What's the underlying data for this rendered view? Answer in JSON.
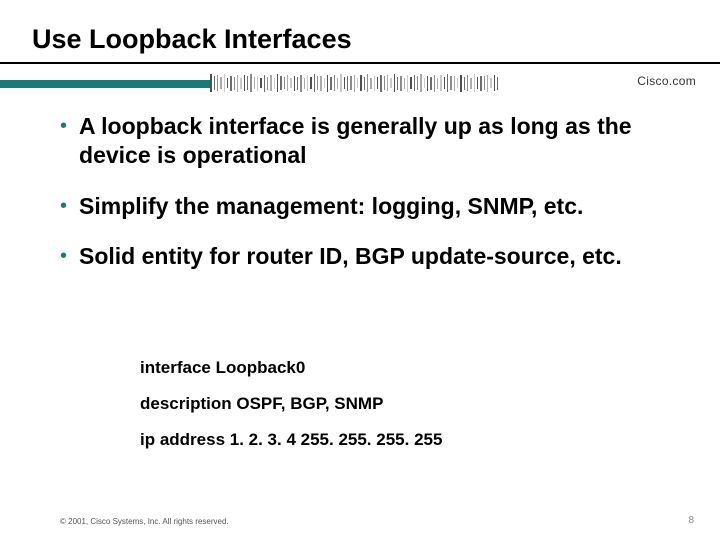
{
  "slide": {
    "title": "Use Loopback Interfaces",
    "logo_text": "Cisco.com",
    "page_number": "8",
    "copyright": "© 2001, Cisco Systems, Inc. All rights reserved."
  },
  "bullets": [
    "A loopback interface is generally up as long as the device is operational",
    "Simplify the management: logging, SNMP, etc.",
    "Solid entity for router ID, BGP update-source, etc."
  ],
  "code_lines": [
    "interface Loopback0",
    "description OSPF, BGP, SNMP",
    "ip address 1. 2. 3. 4 255. 255. 255. 255"
  ],
  "styling": {
    "title_fontsize": 27,
    "title_color": "#000000",
    "bullet_color": "#1a7a7a",
    "bullet_fontsize": 23,
    "bullet_text_color": "#000000",
    "code_fontsize": 17,
    "footer_fontsize": 8,
    "footer_color": "#555555",
    "teal_bar_color": "#1a7a7a",
    "background_color": "#ffffff",
    "page_number_color": "#888888",
    "barcode_heights": [
      18,
      14,
      16,
      12,
      18,
      10,
      15,
      13,
      17,
      11,
      16,
      14,
      18,
      12,
      15,
      10,
      17,
      13,
      16,
      11,
      18,
      14,
      12,
      16,
      10,
      15,
      13,
      17,
      11,
      16,
      12,
      18,
      14,
      15,
      10,
      17,
      13,
      16,
      11,
      18,
      12,
      15,
      14,
      17,
      10,
      16,
      13,
      18,
      11,
      15,
      12,
      17,
      14,
      16,
      10,
      18,
      13,
      15,
      11,
      17,
      12,
      16,
      14,
      18,
      10,
      15,
      13,
      17,
      11,
      16,
      12,
      18,
      14,
      15,
      10,
      17,
      13,
      16,
      11,
      18,
      12,
      15,
      14,
      17,
      10,
      16,
      13
    ]
  }
}
